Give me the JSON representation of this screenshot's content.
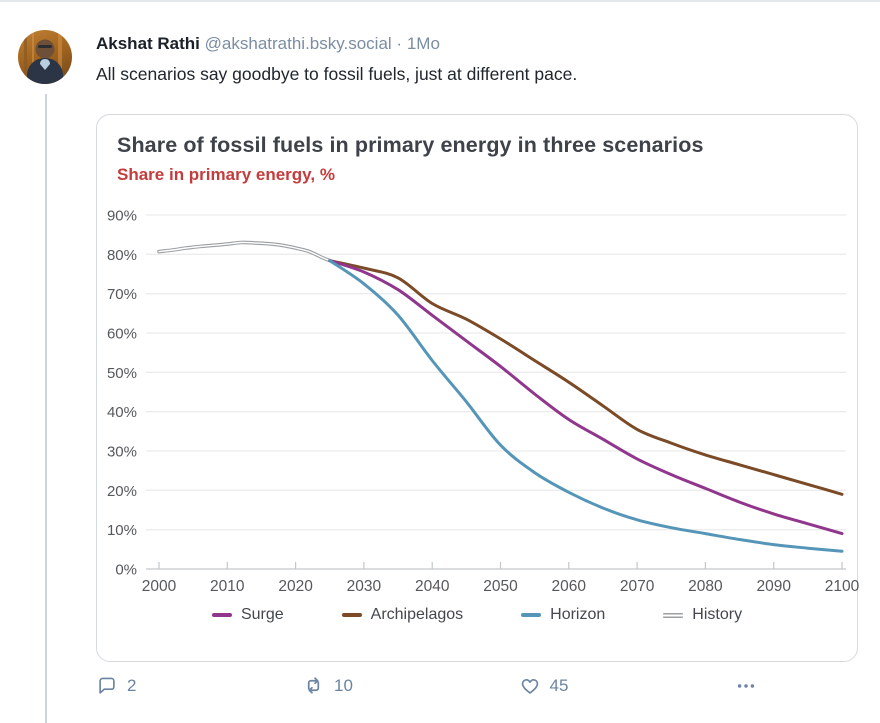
{
  "post": {
    "author_name": "Akshat Rathi",
    "author_handle": "@akshatrathi.bsky.social",
    "separator": "·",
    "timestamp": "1Mo",
    "text": "All scenarios say goodbye to fossil fuels, just at different pace.",
    "actions": {
      "reply_count": "2",
      "repost_count": "10",
      "like_count": "45"
    },
    "icons": {
      "reply": "speech-bubble",
      "repost": "recycle-arrows",
      "like": "heart-outline",
      "more": "ellipsis"
    }
  },
  "colors": {
    "handle_muted": "#7b8da3",
    "action_gray_blue": "#6b84a1",
    "subtitle_red": "#c43d3c",
    "title_charcoal": "#3e4249",
    "gridline": "#ececec",
    "axis_line": "#c3c7cb"
  },
  "chart_data": {
    "type": "line",
    "title": "Share of fossil fuels in primary energy in three scenarios",
    "subtitle": "Share in primary energy, %",
    "xlabel": "",
    "ylabel": "Share in primary energy, %",
    "xlim": [
      2000,
      2100
    ],
    "ylim": [
      0,
      90
    ],
    "grid": true,
    "legend_position": "bottom",
    "x_tick_values": [
      2000,
      2010,
      2020,
      2030,
      2040,
      2050,
      2060,
      2070,
      2080,
      2090,
      2100
    ],
    "x_tick_labels": [
      "2000",
      "2010",
      "2020",
      "2030",
      "2040",
      "2050",
      "2060",
      "2070",
      "2080",
      "2090",
      "2100"
    ],
    "y_tick_values": [
      90,
      80,
      70,
      60,
      50,
      40,
      30,
      20,
      10,
      0
    ],
    "y_tick_labels": [
      "90%",
      "80%",
      "70%",
      "60%",
      "50%",
      "40%",
      "30%",
      "20%",
      "10%",
      "0%"
    ],
    "series": [
      {
        "name": "Surge",
        "color": "#90368c",
        "style": "solid",
        "x": [
          2025,
          2030,
          2035,
          2040,
          2045,
          2050,
          2055,
          2060,
          2065,
          2070,
          2075,
          2080,
          2085,
          2090,
          2095,
          2100
        ],
        "values": [
          78.4,
          75.5,
          71.0,
          64.5,
          58.0,
          51.5,
          44.5,
          38.0,
          33.0,
          28.0,
          24.0,
          20.5,
          17.0,
          14.0,
          11.5,
          9.0
        ]
      },
      {
        "name": "Archipelagos",
        "color": "#7b4a26",
        "style": "solid",
        "x": [
          2025,
          2030,
          2035,
          2040,
          2045,
          2050,
          2055,
          2060,
          2065,
          2070,
          2075,
          2080,
          2085,
          2090,
          2095,
          2100
        ],
        "values": [
          78.4,
          76.5,
          74.0,
          67.5,
          63.5,
          58.5,
          53.0,
          47.5,
          41.5,
          35.5,
          32.0,
          29.0,
          26.5,
          24.0,
          21.5,
          19.0
        ]
      },
      {
        "name": "Horizon",
        "color": "#5596b8",
        "style": "solid",
        "x": [
          2025,
          2030,
          2035,
          2040,
          2045,
          2050,
          2055,
          2060,
          2065,
          2070,
          2075,
          2080,
          2085,
          2090,
          2095,
          2100
        ],
        "values": [
          78.4,
          72.5,
          64.5,
          53.0,
          42.5,
          31.5,
          24.5,
          19.5,
          15.5,
          12.5,
          10.5,
          9.0,
          7.5,
          6.2,
          5.3,
          4.5
        ]
      },
      {
        "name": "History",
        "color": "#9b9fa3",
        "style": "double",
        "x": [
          2000,
          2002,
          2004,
          2006,
          2008,
          2010,
          2012,
          2014,
          2016,
          2018,
          2020,
          2022,
          2024,
          2025
        ],
        "values": [
          80.7,
          81.1,
          81.6,
          82.0,
          82.3,
          82.6,
          83.0,
          82.9,
          82.7,
          82.3,
          81.6,
          80.7,
          79.1,
          78.4
        ]
      }
    ]
  }
}
